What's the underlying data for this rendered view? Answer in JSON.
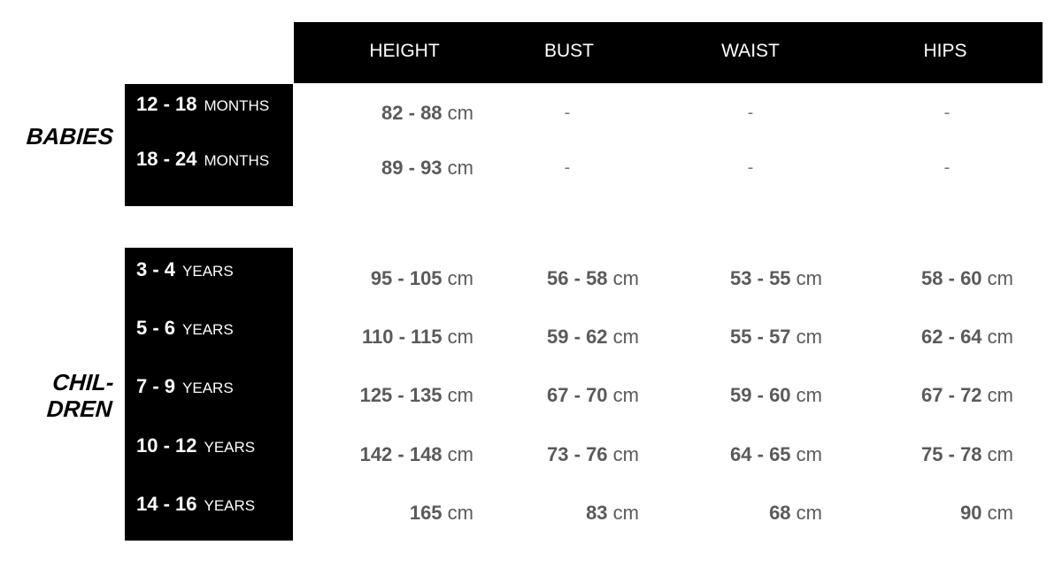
{
  "headers": [
    "HEIGHT",
    "BUST",
    "WAIST",
    "HIPS"
  ],
  "groups": [
    {
      "label": "BABIES",
      "rows": [
        {
          "age": "12 - 18",
          "unit": "MONTHS",
          "values": [
            {
              "n": "82 - 88",
              "u": "cm"
            },
            {
              "n": "-",
              "u": ""
            },
            {
              "n": "-",
              "u": ""
            },
            {
              "n": "-",
              "u": ""
            }
          ]
        },
        {
          "age": "18 - 24",
          "unit": "MONTHS",
          "values": [
            {
              "n": "89 - 93",
              "u": "cm"
            },
            {
              "n": "-",
              "u": ""
            },
            {
              "n": "-",
              "u": ""
            },
            {
              "n": "-",
              "u": ""
            }
          ]
        }
      ]
    },
    {
      "label": "CHIL-\nDREN",
      "rows": [
        {
          "age": "3 - 4",
          "unit": "YEARS",
          "values": [
            {
              "n": "95 - 105",
              "u": "cm"
            },
            {
              "n": "56 - 58",
              "u": "cm"
            },
            {
              "n": "53 - 55",
              "u": "cm"
            },
            {
              "n": "58 - 60",
              "u": "cm"
            }
          ]
        },
        {
          "age": "5 - 6",
          "unit": "YEARS",
          "values": [
            {
              "n": "110 - 115",
              "u": "cm"
            },
            {
              "n": "59 - 62",
              "u": "cm"
            },
            {
              "n": "55 - 57",
              "u": "cm"
            },
            {
              "n": "62 - 64",
              "u": "cm"
            }
          ]
        },
        {
          "age": "7 - 9",
          "unit": "YEARS",
          "values": [
            {
              "n": "125 - 135",
              "u": "cm"
            },
            {
              "n": "67 - 70",
              "u": "cm"
            },
            {
              "n": "59 - 60",
              "u": "cm"
            },
            {
              "n": "67 - 72",
              "u": "cm"
            }
          ]
        },
        {
          "age": "10 - 12",
          "unit": "YEARS",
          "values": [
            {
              "n": "142 - 148",
              "u": "cm"
            },
            {
              "n": "73 - 76",
              "u": "cm"
            },
            {
              "n": "64 - 65",
              "u": "cm"
            },
            {
              "n": "75 - 78",
              "u": "cm"
            }
          ]
        },
        {
          "age": "14 - 16",
          "unit": "YEARS",
          "values": [
            {
              "n": "165",
              "u": "cm"
            },
            {
              "n": "83",
              "u": "cm"
            },
            {
              "n": "68",
              "u": "cm"
            },
            {
              "n": "90",
              "u": "cm"
            }
          ]
        }
      ]
    }
  ]
}
